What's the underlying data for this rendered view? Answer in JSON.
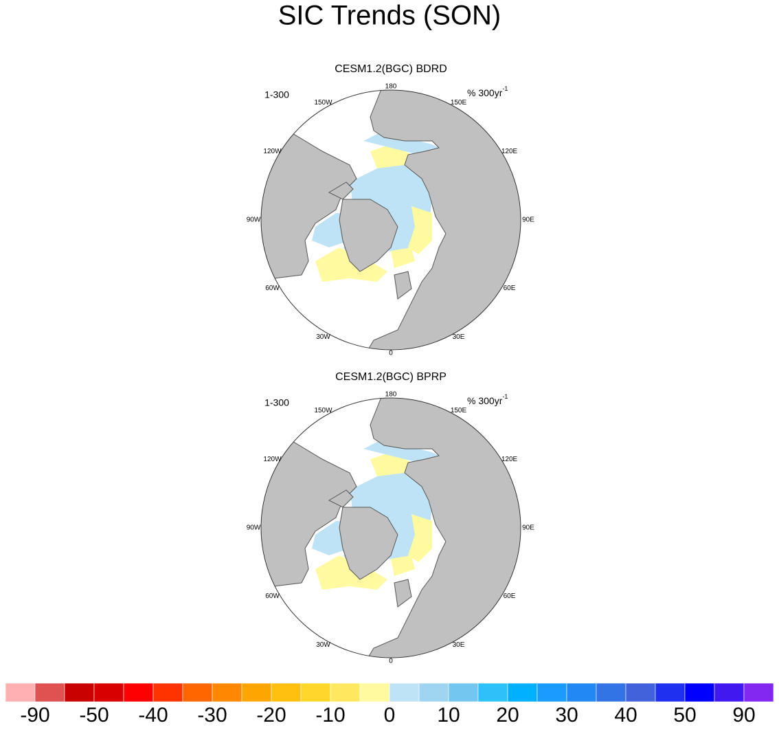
{
  "title": "SIC Trends (SON)",
  "panels": [
    {
      "title": "CESM1.2(BGC) BDRD",
      "left_label": "1-300",
      "units": "% 300yr",
      "units_exponent": "-1",
      "longitude_labels": [
        "180",
        "150E",
        "120E",
        "90E",
        "60E",
        "30E",
        "0",
        "30W",
        "60W",
        "90W",
        "120W",
        "150W"
      ]
    },
    {
      "title": "CESM1.2(BGC) BPRP",
      "left_label": "1-300",
      "units": "% 300yr",
      "units_exponent": "-1",
      "longitude_labels": [
        "180",
        "150E",
        "120E",
        "90E",
        "60E",
        "30E",
        "0",
        "30W",
        "60W",
        "90W",
        "120W",
        "150W"
      ]
    }
  ],
  "colorbar": {
    "colors": [
      "#ffb0b0",
      "#e05252",
      "#c80000",
      "#d80000",
      "#ff0000",
      "#ff3300",
      "#ff6600",
      "#ff8800",
      "#ffa500",
      "#ffc010",
      "#ffd72a",
      "#ffe860",
      "#fffaa0",
      "#bfe3f6",
      "#9fd5f0",
      "#72c6f0",
      "#2ec0f8",
      "#00b0ff",
      "#1a9cff",
      "#2288f4",
      "#3273e6",
      "#4262dc",
      "#2030f0",
      "#0000ff",
      "#4218f0",
      "#8228f0"
    ],
    "labels": [
      -90,
      -50,
      -40,
      -30,
      -20,
      -10,
      0,
      10,
      20,
      30,
      40,
      50,
      90
    ]
  }
}
